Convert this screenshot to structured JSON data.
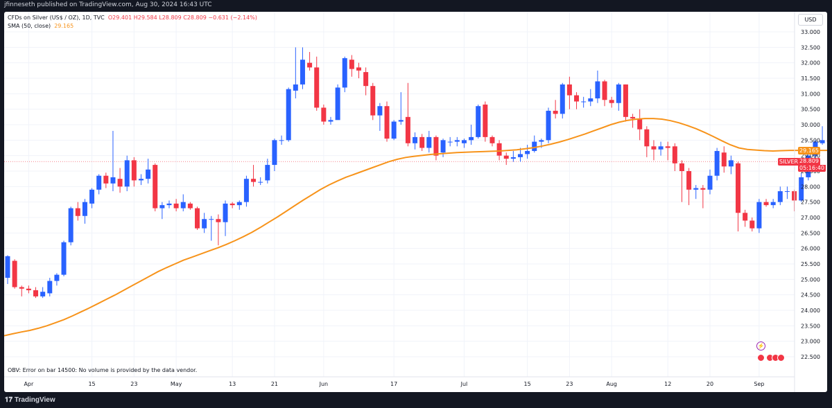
{
  "publisher_line": "jfinneseth published on TradingView.com, Aug 30, 2024 16:43 UTC",
  "legend": {
    "symbol": "CFDs on Silver (US$ / OZ), 1D, TVC",
    "ohlc": "O29.401  H29.584  L28.809  C28.809  −0.631 (−2.14%)",
    "sma_label": "SMA (50, close)",
    "sma_value": "29.165"
  },
  "currency_button": "USD",
  "obv_message": "OBV: Error on bar 14500: No volume is provided by the data vendor.",
  "price_tags": {
    "sma": "29.165",
    "symbol": "SILVER",
    "last": "28.809",
    "countdown": "05:16:40"
  },
  "brand": "TradingView",
  "colors": {
    "up": "#2962ff",
    "down": "#f23645",
    "sma": "#f7931a",
    "background": "#ffffff",
    "frame": "#131722"
  },
  "chart_data": {
    "type": "candlestick",
    "symbol": "SILVER",
    "interval": "1D",
    "y_ticks": [
      "33.000",
      "32.500",
      "32.000",
      "31.500",
      "31.000",
      "30.500",
      "30.000",
      "29.500",
      "29.000",
      "28.500",
      "28.000",
      "27.500",
      "27.000",
      "26.500",
      "26.000",
      "25.500",
      "25.000",
      "24.500",
      "24.000",
      "23.500",
      "23.000",
      "22.500"
    ],
    "ylim": [
      22.3,
      33.2
    ],
    "x_ticks": [
      {
        "label": "Apr",
        "index": 3
      },
      {
        "label": "15",
        "index": 12
      },
      {
        "label": "23",
        "index": 18
      },
      {
        "label": "May",
        "index": 24
      },
      {
        "label": "13",
        "index": 32
      },
      {
        "label": "21",
        "index": 38
      },
      {
        "label": "Jun",
        "index": 45
      },
      {
        "label": "17",
        "index": 55
      },
      {
        "label": "Jul",
        "index": 65
      },
      {
        "label": "15",
        "index": 74
      },
      {
        "label": "23",
        "index": 80
      },
      {
        "label": "Aug",
        "index": 86
      },
      {
        "label": "12",
        "index": 94
      },
      {
        "label": "20",
        "index": 100
      },
      {
        "label": "Sep",
        "index": 107
      }
    ],
    "last_price_line": 28.809,
    "candles": [
      [
        25.05,
        25.75,
        25.78,
        24.85
      ],
      [
        25.6,
        24.75,
        25.65,
        24.7
      ],
      [
        24.75,
        24.7,
        24.8,
        24.45
      ],
      [
        24.7,
        24.65,
        24.8,
        24.55
      ],
      [
        24.65,
        24.45,
        24.75,
        24.4
      ],
      [
        24.45,
        24.6,
        24.75,
        24.4
      ],
      [
        24.55,
        24.95,
        25.05,
        24.45
      ],
      [
        24.95,
        25.15,
        25.2,
        24.8
      ],
      [
        25.15,
        26.2,
        26.25,
        25.1
      ],
      [
        26.2,
        27.3,
        27.35,
        26.1
      ],
      [
        27.3,
        27.05,
        27.5,
        26.9
      ],
      [
        27.05,
        27.5,
        27.6,
        26.8
      ],
      [
        27.45,
        27.9,
        27.95,
        27.3
      ],
      [
        27.9,
        28.35,
        28.4,
        27.75
      ],
      [
        28.35,
        28.1,
        28.45,
        27.95
      ],
      [
        28.1,
        28.3,
        29.8,
        27.85
      ],
      [
        28.25,
        28.0,
        28.6,
        27.8
      ],
      [
        28.0,
        28.85,
        29.0,
        27.85
      ],
      [
        28.85,
        28.2,
        28.95,
        28.0
      ],
      [
        28.2,
        28.25,
        28.4,
        28.05
      ],
      [
        28.25,
        28.55,
        28.9,
        28.1
      ],
      [
        28.7,
        27.3,
        28.75,
        27.2
      ],
      [
        27.3,
        27.4,
        27.5,
        26.95
      ],
      [
        27.4,
        27.45,
        27.55,
        27.3
      ],
      [
        27.45,
        27.3,
        27.6,
        27.2
      ],
      [
        27.3,
        27.5,
        27.75,
        27.2
      ],
      [
        27.45,
        27.3,
        27.5,
        27.25
      ],
      [
        27.3,
        26.65,
        27.35,
        26.6
      ],
      [
        26.65,
        26.95,
        27.15,
        26.5
      ],
      [
        26.95,
        26.95,
        27.05,
        26.25
      ],
      [
        26.95,
        26.85,
        27.1,
        26.1
      ],
      [
        26.85,
        27.45,
        27.55,
        26.4
      ],
      [
        27.45,
        27.4,
        27.5,
        27.3
      ],
      [
        27.4,
        27.5,
        27.55,
        27.25
      ],
      [
        27.5,
        28.25,
        28.35,
        27.35
      ],
      [
        28.25,
        28.15,
        28.7,
        28.0
      ],
      [
        28.15,
        28.15,
        28.3,
        28.05
      ],
      [
        28.2,
        28.7,
        28.9,
        28.1
      ],
      [
        28.7,
        29.5,
        29.55,
        28.5
      ],
      [
        29.5,
        29.5,
        29.65,
        29.35
      ],
      [
        29.5,
        31.15,
        31.2,
        29.45
      ],
      [
        31.1,
        31.3,
        32.5,
        30.85
      ],
      [
        31.3,
        32.1,
        32.5,
        31.15
      ],
      [
        32.0,
        31.85,
        32.35,
        31.75
      ],
      [
        31.85,
        30.55,
        32.2,
        30.45
      ],
      [
        30.55,
        30.1,
        30.65,
        30.0
      ],
      [
        30.1,
        30.15,
        30.25,
        30.0
      ],
      [
        30.15,
        31.2,
        31.3,
        30.2
      ],
      [
        31.2,
        32.15,
        32.2,
        31.05
      ],
      [
        32.1,
        31.8,
        32.25,
        31.55
      ],
      [
        31.85,
        31.75,
        32.0,
        31.5
      ],
      [
        31.7,
        31.25,
        31.85,
        30.95
      ],
      [
        31.25,
        30.3,
        31.35,
        30.15
      ],
      [
        30.3,
        30.6,
        30.7,
        29.8
      ],
      [
        30.6,
        29.55,
        30.75,
        29.45
      ],
      [
        29.55,
        30.1,
        30.15,
        29.5
      ],
      [
        30.1,
        30.15,
        31.05,
        30.0
      ],
      [
        30.25,
        29.4,
        31.35,
        29.3
      ],
      [
        29.4,
        29.6,
        29.75,
        29.2
      ],
      [
        29.6,
        29.25,
        29.7,
        29.15
      ],
      [
        29.25,
        29.6,
        29.8,
        29.1
      ],
      [
        29.6,
        29.0,
        29.65,
        28.85
      ],
      [
        29.1,
        29.5,
        29.55,
        28.95
      ],
      [
        29.45,
        29.45,
        29.6,
        29.3
      ],
      [
        29.45,
        29.5,
        29.6,
        29.3
      ],
      [
        29.4,
        29.5,
        29.55,
        29.25
      ],
      [
        29.5,
        29.6,
        30.0,
        29.35
      ],
      [
        29.6,
        30.6,
        30.65,
        29.55
      ],
      [
        30.65,
        29.6,
        30.75,
        29.45
      ],
      [
        29.6,
        29.4,
        29.65,
        29.3
      ],
      [
        29.4,
        29.0,
        29.5,
        28.85
      ],
      [
        29.0,
        28.9,
        29.1,
        28.7
      ],
      [
        28.9,
        28.95,
        29.15,
        28.8
      ],
      [
        28.95,
        29.05,
        29.25,
        28.8
      ],
      [
        29.05,
        29.15,
        29.35,
        28.9
      ],
      [
        29.15,
        29.45,
        29.65,
        29.1
      ],
      [
        29.45,
        29.5,
        29.55,
        29.25
      ],
      [
        29.5,
        30.45,
        30.55,
        29.4
      ],
      [
        30.45,
        30.35,
        30.8,
        30.2
      ],
      [
        30.35,
        31.3,
        31.35,
        30.2
      ],
      [
        31.3,
        30.95,
        31.55,
        30.5
      ],
      [
        30.95,
        30.75,
        31.05,
        30.5
      ],
      [
        30.75,
        30.75,
        30.9,
        30.55
      ],
      [
        30.75,
        30.85,
        31.15,
        30.6
      ],
      [
        30.85,
        31.4,
        31.75,
        30.7
      ],
      [
        31.4,
        30.8,
        31.45,
        30.6
      ],
      [
        30.8,
        30.7,
        30.9,
        30.55
      ],
      [
        30.7,
        31.3,
        31.35,
        30.45
      ],
      [
        31.3,
        30.25,
        31.3,
        30.1
      ],
      [
        30.25,
        30.2,
        30.35,
        29.9
      ],
      [
        30.2,
        29.85,
        30.5,
        29.5
      ],
      [
        29.85,
        29.3,
        29.95,
        28.95
      ],
      [
        29.3,
        29.2,
        29.5,
        28.85
      ],
      [
        29.2,
        29.3,
        29.45,
        29.0
      ],
      [
        29.3,
        29.25,
        29.45,
        28.85
      ],
      [
        29.3,
        28.75,
        29.4,
        28.5
      ],
      [
        28.75,
        28.5,
        28.85,
        27.5
      ],
      [
        28.5,
        27.9,
        28.6,
        27.4
      ],
      [
        27.9,
        27.95,
        28.05,
        27.6
      ],
      [
        27.95,
        27.9,
        28.05,
        27.3
      ],
      [
        27.9,
        28.35,
        28.55,
        27.75
      ],
      [
        28.35,
        29.15,
        29.25,
        28.2
      ],
      [
        29.1,
        28.65,
        29.3,
        28.45
      ],
      [
        28.65,
        28.85,
        29.0,
        28.4
      ],
      [
        28.75,
        27.15,
        28.8,
        26.55
      ],
      [
        27.15,
        26.9,
        27.25,
        26.7
      ],
      [
        26.9,
        26.65,
        27.0,
        26.55
      ],
      [
        26.65,
        27.5,
        27.6,
        26.5
      ],
      [
        27.5,
        27.4,
        27.6,
        27.35
      ],
      [
        27.4,
        27.5,
        27.6,
        27.3
      ],
      [
        27.5,
        27.85,
        28.0,
        27.4
      ],
      [
        27.85,
        27.85,
        28.0,
        27.6
      ],
      [
        27.85,
        27.55,
        27.9,
        27.2
      ],
      [
        27.55,
        28.3,
        28.45,
        27.5
      ],
      [
        28.3,
        29.0,
        29.1,
        28.2
      ],
      [
        29.0,
        29.45,
        29.5,
        28.5
      ],
      [
        29.4,
        29.5,
        29.95,
        29.35
      ],
      [
        29.5,
        29.45,
        29.55,
        29.35
      ],
      [
        29.45,
        29.35,
        29.7,
        29.25
      ],
      [
        29.0,
        29.7,
        30.0,
        28.95
      ],
      [
        29.5,
        29.4,
        29.65,
        29.05
      ],
      [
        29.4,
        29.85,
        30.0,
        29.3
      ],
      [
        29.85,
        29.95,
        30.15,
        29.8
      ],
      [
        29.9,
        30.0,
        30.2,
        29.85
      ],
      [
        30.0,
        29.45,
        30.1,
        29.35
      ],
      [
        29.45,
        29.4,
        29.7,
        29.2
      ],
      [
        29.401,
        28.809,
        29.584,
        28.809
      ]
    ],
    "sma_50": [
      23.18,
      23.24,
      23.3,
      23.35,
      23.42,
      23.5,
      23.6,
      23.7,
      23.82,
      23.95,
      24.08,
      24.22,
      24.36,
      24.5,
      24.65,
      24.8,
      24.95,
      25.1,
      25.25,
      25.38,
      25.5,
      25.62,
      25.72,
      25.82,
      25.92,
      26.02,
      26.13,
      26.25,
      26.38,
      26.52,
      26.68,
      26.85,
      27.02,
      27.2,
      27.38,
      27.56,
      27.73,
      27.9,
      28.05,
      28.18,
      28.3,
      28.4,
      28.5,
      28.6,
      28.7,
      28.8,
      28.88,
      28.94,
      28.98,
      29.01,
      29.04,
      29.06,
      29.08,
      29.1,
      29.11,
      29.12,
      29.13,
      29.14,
      29.15,
      29.17,
      29.19,
      29.22,
      29.26,
      29.31,
      29.37,
      29.44,
      29.52,
      29.61,
      29.7,
      29.8,
      29.9,
      30.0,
      30.08,
      30.14,
      30.18,
      30.2,
      30.2,
      30.18,
      30.13,
      30.06,
      29.97,
      29.87,
      29.75,
      29.62,
      29.48,
      29.35,
      29.25,
      29.2,
      29.18,
      29.16,
      29.15,
      29.16,
      29.17,
      29.17,
      29.17,
      29.17,
      29.17,
      29.17,
      29.17,
      29.165,
      29.165,
      29.165,
      29.165,
      29.165,
      29.165
    ]
  }
}
